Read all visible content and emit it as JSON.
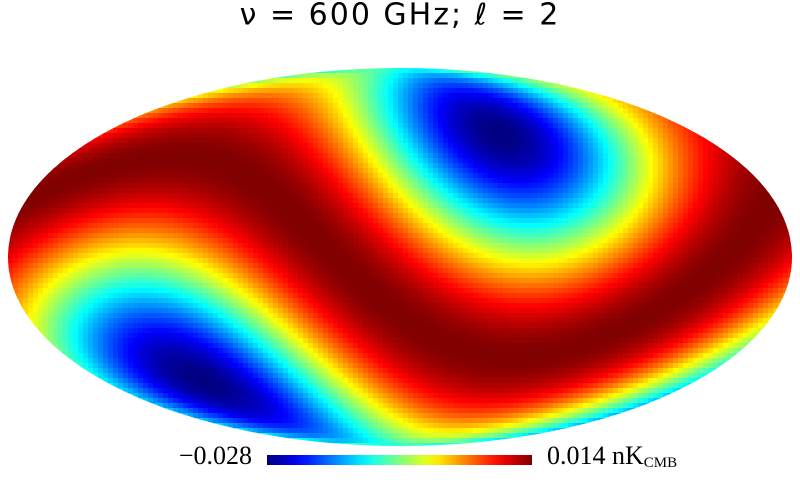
{
  "title": "ν = 600 GHz; ℓ = 2",
  "colorbar": {
    "min": {
      "value": -0.028,
      "label": "−0.028"
    },
    "max": 0.014,
    "unit": "nK",
    "unit_subscript": "CMB"
  }
}
